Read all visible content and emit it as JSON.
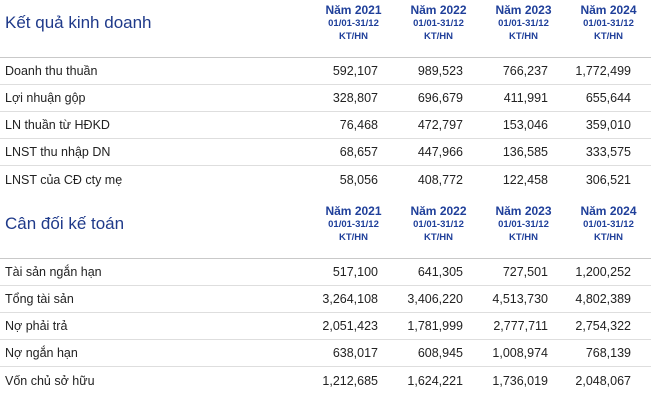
{
  "sections": [
    {
      "title": "Kết quả kinh doanh",
      "columns": [
        {
          "year": "Năm 2021",
          "range": "01/01-31/12",
          "unit": "KT/HN"
        },
        {
          "year": "Năm 2022",
          "range": "01/01-31/12",
          "unit": "KT/HN"
        },
        {
          "year": "Năm 2023",
          "range": "01/01-31/12",
          "unit": "KT/HN"
        },
        {
          "year": "Năm 2024",
          "range": "01/01-31/12",
          "unit": "KT/HN"
        }
      ],
      "rows": [
        {
          "label": "Doanh thu thuần",
          "values": [
            "592,107",
            "989,523",
            "766,237",
            "1,772,499"
          ]
        },
        {
          "label": "Lợi nhuận gộp",
          "values": [
            "328,807",
            "696,679",
            "411,991",
            "655,644"
          ]
        },
        {
          "label": "LN thuần từ HĐKD",
          "values": [
            "76,468",
            "472,797",
            "153,046",
            "359,010"
          ]
        },
        {
          "label": "LNST thu nhập DN",
          "values": [
            "68,657",
            "447,966",
            "136,585",
            "333,575"
          ]
        },
        {
          "label": "LNST của CĐ cty mẹ",
          "values": [
            "58,056",
            "408,772",
            "122,458",
            "306,521"
          ]
        }
      ]
    },
    {
      "title": "Cân đối kế toán",
      "columns": [
        {
          "year": "Năm 2021",
          "range": "01/01-31/12",
          "unit": "KT/HN"
        },
        {
          "year": "Năm 2022",
          "range": "01/01-31/12",
          "unit": "KT/HN"
        },
        {
          "year": "Năm 2023",
          "range": "01/01-31/12",
          "unit": "KT/HN"
        },
        {
          "year": "Năm 2024",
          "range": "01/01-31/12",
          "unit": "KT/HN"
        }
      ],
      "rows": [
        {
          "label": "Tài sản ngắn hạn",
          "values": [
            "517,100",
            "641,305",
            "727,501",
            "1,200,252"
          ]
        },
        {
          "label": "Tổng tài sản",
          "values": [
            "3,264,108",
            "3,406,220",
            "4,513,730",
            "4,802,389"
          ]
        },
        {
          "label": "Nợ phải trả",
          "values": [
            "2,051,423",
            "1,781,999",
            "2,777,711",
            "2,754,322"
          ]
        },
        {
          "label": "Nợ ngắn hạn",
          "values": [
            "638,017",
            "608,945",
            "1,008,974",
            "768,139"
          ]
        },
        {
          "label": "Vốn chủ sở hữu",
          "values": [
            "1,212,685",
            "1,624,221",
            "1,736,019",
            "2,048,067"
          ]
        }
      ]
    }
  ]
}
